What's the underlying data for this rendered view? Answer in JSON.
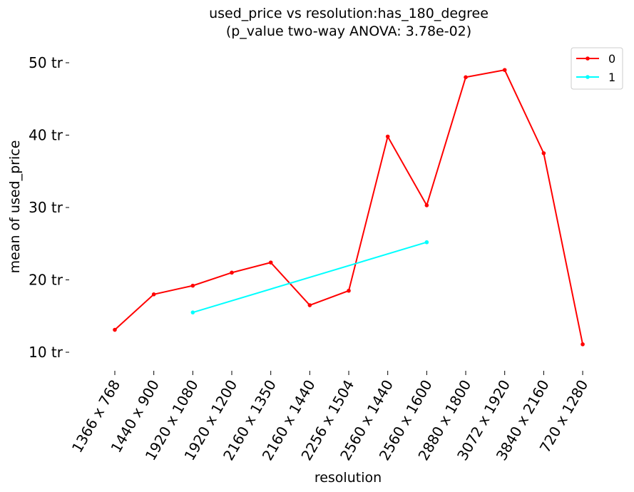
{
  "chart_data": {
    "type": "line",
    "title": "used_price vs resolution:has_180_degree",
    "subtitle": "(p_value two-way ANOVA: 3.78e-02)",
    "xlabel": "resolution",
    "ylabel": "mean of used_price",
    "categories": [
      "1366 x 768",
      "1440 x 900",
      "1920 x 1080",
      "1920 x 1200",
      "2160 x 1350",
      "2160 x 1440",
      "2256 x 1504",
      "2560 x 1440",
      "2560 x 1600",
      "2880 x 1800",
      "3072 x 1920",
      "3840 x 2160",
      "720 x 1280"
    ],
    "y_ticks": [
      10,
      20,
      30,
      40,
      50
    ],
    "y_tick_labels": [
      "10 tr",
      "20 tr",
      "30 tr",
      "40 tr",
      "50 tr"
    ],
    "ylim": [
      8,
      52
    ],
    "grid": false,
    "legend_position": "top-right",
    "series": [
      {
        "name": "0",
        "color": "#ff0000",
        "values": [
          13.1,
          18.0,
          19.2,
          21.0,
          22.4,
          16.5,
          18.5,
          39.8,
          30.3,
          48.0,
          49.0,
          37.5,
          11.1
        ]
      },
      {
        "name": "1",
        "color": "#00ffff",
        "values": [
          null,
          null,
          15.5,
          null,
          null,
          null,
          null,
          null,
          25.2,
          null,
          null,
          null,
          null
        ]
      }
    ]
  }
}
